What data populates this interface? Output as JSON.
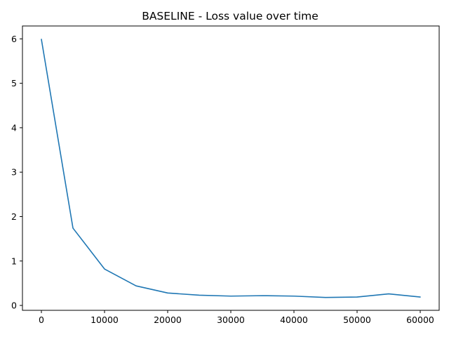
{
  "chart_data": {
    "type": "line",
    "title": "BASELINE - Loss value over time",
    "xlabel": "",
    "ylabel": "",
    "xlim": [
      -3000,
      63000
    ],
    "ylim": [
      -0.11,
      6.29
    ],
    "x_ticks": [
      0,
      10000,
      20000,
      30000,
      40000,
      50000,
      60000
    ],
    "y_ticks": [
      0,
      1,
      2,
      3,
      4,
      5,
      6
    ],
    "grid": false,
    "legend": "none",
    "series": [
      {
        "color": "#1f77b4",
        "x": [
          0,
          5000,
          10000,
          15000,
          20000,
          25000,
          30000,
          35000,
          40000,
          45000,
          50000,
          55000,
          60000
        ],
        "y": [
          5.99,
          1.74,
          0.82,
          0.44,
          0.28,
          0.23,
          0.21,
          0.22,
          0.21,
          0.18,
          0.19,
          0.26,
          0.19
        ]
      }
    ]
  }
}
